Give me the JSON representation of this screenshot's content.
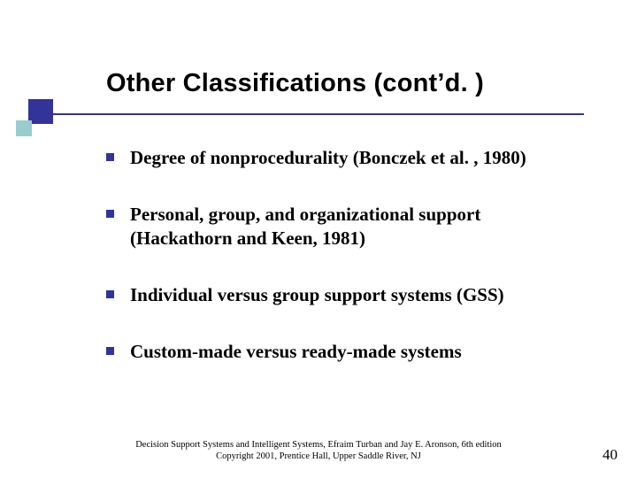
{
  "colors": {
    "accent": "#333399",
    "accent_light": "#99cccc",
    "background": "#ffffff",
    "text": "#000000"
  },
  "title": "Other Classifications (cont’d. )",
  "bullets": [
    "Degree of nonprocedurality (Bonczek et al. , 1980)",
    "Personal, group, and organizational support (Hackathorn and Keen, 1981)",
    "Individual versus group support systems (GSS)",
    "Custom-made versus ready-made systems"
  ],
  "footer_line1": "Decision Support Systems and Intelligent Systems, Efraim Turban and Jay E. Aronson, 6th edition",
  "footer_line2": "Copyright 2001, Prentice Hall, Upper Saddle River, NJ",
  "page_number": "40"
}
